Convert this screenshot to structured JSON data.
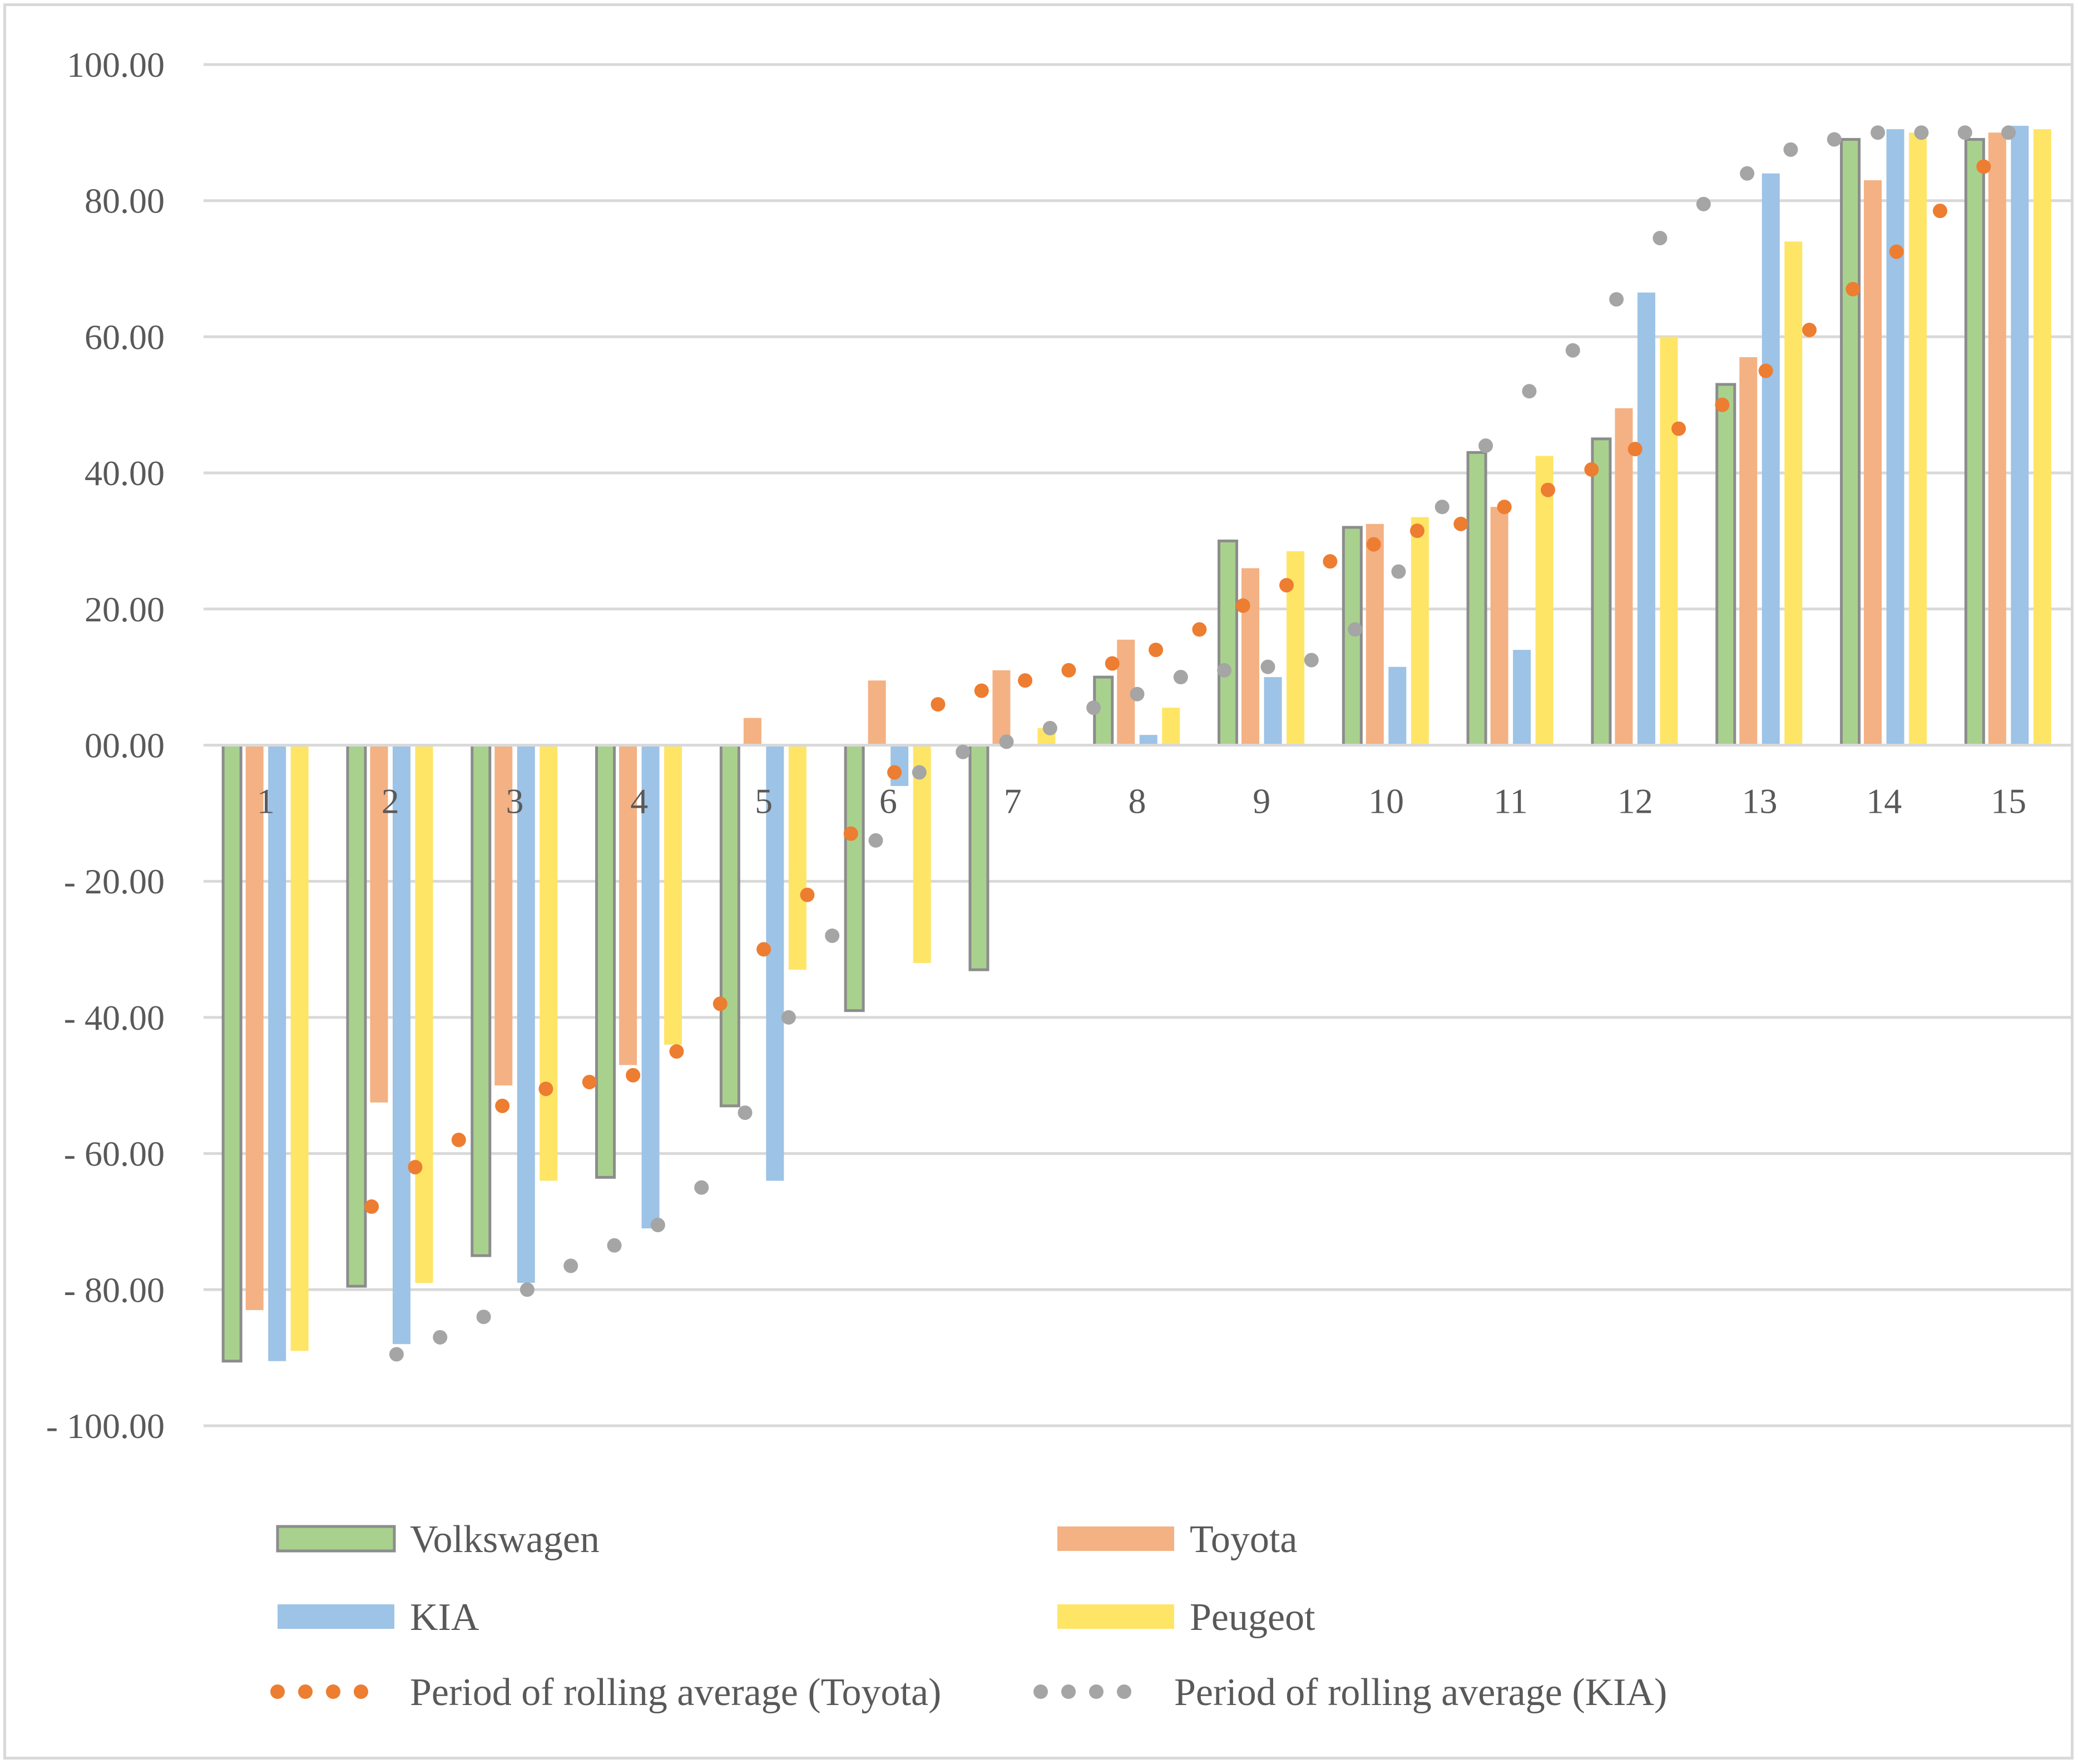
{
  "chart_data": {
    "type": "bar",
    "title": "",
    "xlabel": "",
    "ylabel": "",
    "ylim": [
      -100,
      100
    ],
    "y_ticks": [
      100,
      80,
      60,
      40,
      20,
      0,
      -20,
      -40,
      -60,
      -80,
      -100
    ],
    "y_tick_labels": [
      "100.00",
      "80.00",
      "60.00",
      "40.00",
      "20.00",
      "00.00",
      "- 20.00",
      "- 40.00",
      "- 60.00",
      "- 80.00",
      "- 100.00"
    ],
    "grid": true,
    "legend_position": "bottom",
    "categories": [
      "1",
      "2",
      "3",
      "4",
      "5",
      "6",
      "7",
      "8",
      "9",
      "10",
      "11",
      "12",
      "13",
      "14",
      "15"
    ],
    "series": [
      {
        "name": "Volkswagen",
        "kind": "bar",
        "color": "#a9d18e",
        "border": "#8c8c8c",
        "values": [
          -90.5,
          -79.5,
          -75.0,
          -63.5,
          -53.0,
          -39.0,
          -33.0,
          10.0,
          30.0,
          32.0,
          43.0,
          45.0,
          53.0,
          89.0,
          89.0
        ]
      },
      {
        "name": "Toyota",
        "kind": "bar",
        "color": "#f4b183",
        "values": [
          -83.0,
          -52.5,
          -50.0,
          -47.0,
          4.0,
          9.5,
          11.0,
          15.5,
          26.0,
          32.5,
          35.0,
          49.5,
          57.0,
          83.0,
          90.0
        ]
      },
      {
        "name": "KIA",
        "kind": "bar",
        "color": "#9dc3e6",
        "values": [
          -90.5,
          -88.0,
          -79.0,
          -71.0,
          -64.0,
          -6.0,
          0.0,
          1.5,
          10.0,
          11.5,
          14.0,
          66.5,
          84.0,
          90.5,
          91.0
        ]
      },
      {
        "name": "Peugeot",
        "kind": "bar",
        "color": "#ffe566",
        "values": [
          -89.0,
          -79.0,
          -64.0,
          -44.0,
          -33.0,
          -32.0,
          2.5,
          5.5,
          28.5,
          33.5,
          42.5,
          60.0,
          74.0,
          90.0,
          90.5
        ]
      },
      {
        "name": "Period of rolling average (Toyota)",
        "kind": "dotted-line",
        "color": "#ed7d31",
        "x": [
          1.85,
          2.2,
          2.55,
          2.9,
          3.25,
          3.6,
          3.95,
          4.3,
          4.65,
          5.0,
          5.35,
          5.7,
          6.05,
          6.4,
          6.75,
          7.1,
          7.45,
          7.8,
          8.15,
          8.5,
          8.85,
          9.2,
          9.55,
          9.9,
          10.25,
          10.6,
          10.95,
          11.3,
          11.65,
          12.0,
          12.35,
          12.7,
          13.05,
          13.4,
          13.75,
          14.1,
          14.45,
          14.8
        ],
        "values": [
          -67.8,
          -62.0,
          -58.0,
          -53.0,
          -50.5,
          -49.5,
          -48.5,
          -45.0,
          -38.0,
          -30.0,
          -22.0,
          -13.0,
          -4.0,
          6.0,
          8.0,
          9.5,
          11.0,
          12.0,
          14.0,
          17.0,
          20.5,
          23.5,
          27.0,
          29.5,
          31.5,
          32.5,
          35.0,
          37.5,
          40.5,
          43.5,
          46.5,
          50.0,
          55.0,
          61.0,
          67.0,
          72.5,
          78.5,
          85.0
        ]
      },
      {
        "name": "Period of rolling average (KIA)",
        "kind": "dotted-line",
        "color": "#a5a5a5",
        "x": [
          2.05,
          2.4,
          2.75,
          3.1,
          3.45,
          3.8,
          4.15,
          4.5,
          4.85,
          5.2,
          5.55,
          5.9,
          6.25,
          6.6,
          6.95,
          7.3,
          7.65,
          8.0,
          8.35,
          8.7,
          9.05,
          9.4,
          9.75,
          10.1,
          10.45,
          10.8,
          11.15,
          11.5,
          11.85,
          12.2,
          12.55,
          12.9,
          13.25,
          13.6,
          13.95,
          14.3,
          14.65,
          15.0
        ],
        "values": [
          -89.5,
          -87.0,
          -84.0,
          -80.0,
          -76.5,
          -73.5,
          -70.5,
          -65.0,
          -54.0,
          -40.0,
          -28.0,
          -14.0,
          -4.0,
          -1.0,
          0.5,
          2.5,
          5.5,
          7.5,
          10.0,
          11.0,
          11.5,
          12.5,
          17.0,
          25.5,
          35.0,
          44.0,
          52.0,
          58.0,
          65.5,
          74.5,
          79.5,
          84.0,
          87.5,
          89.0,
          90.0,
          90.0,
          90.0,
          90.0
        ]
      }
    ]
  }
}
